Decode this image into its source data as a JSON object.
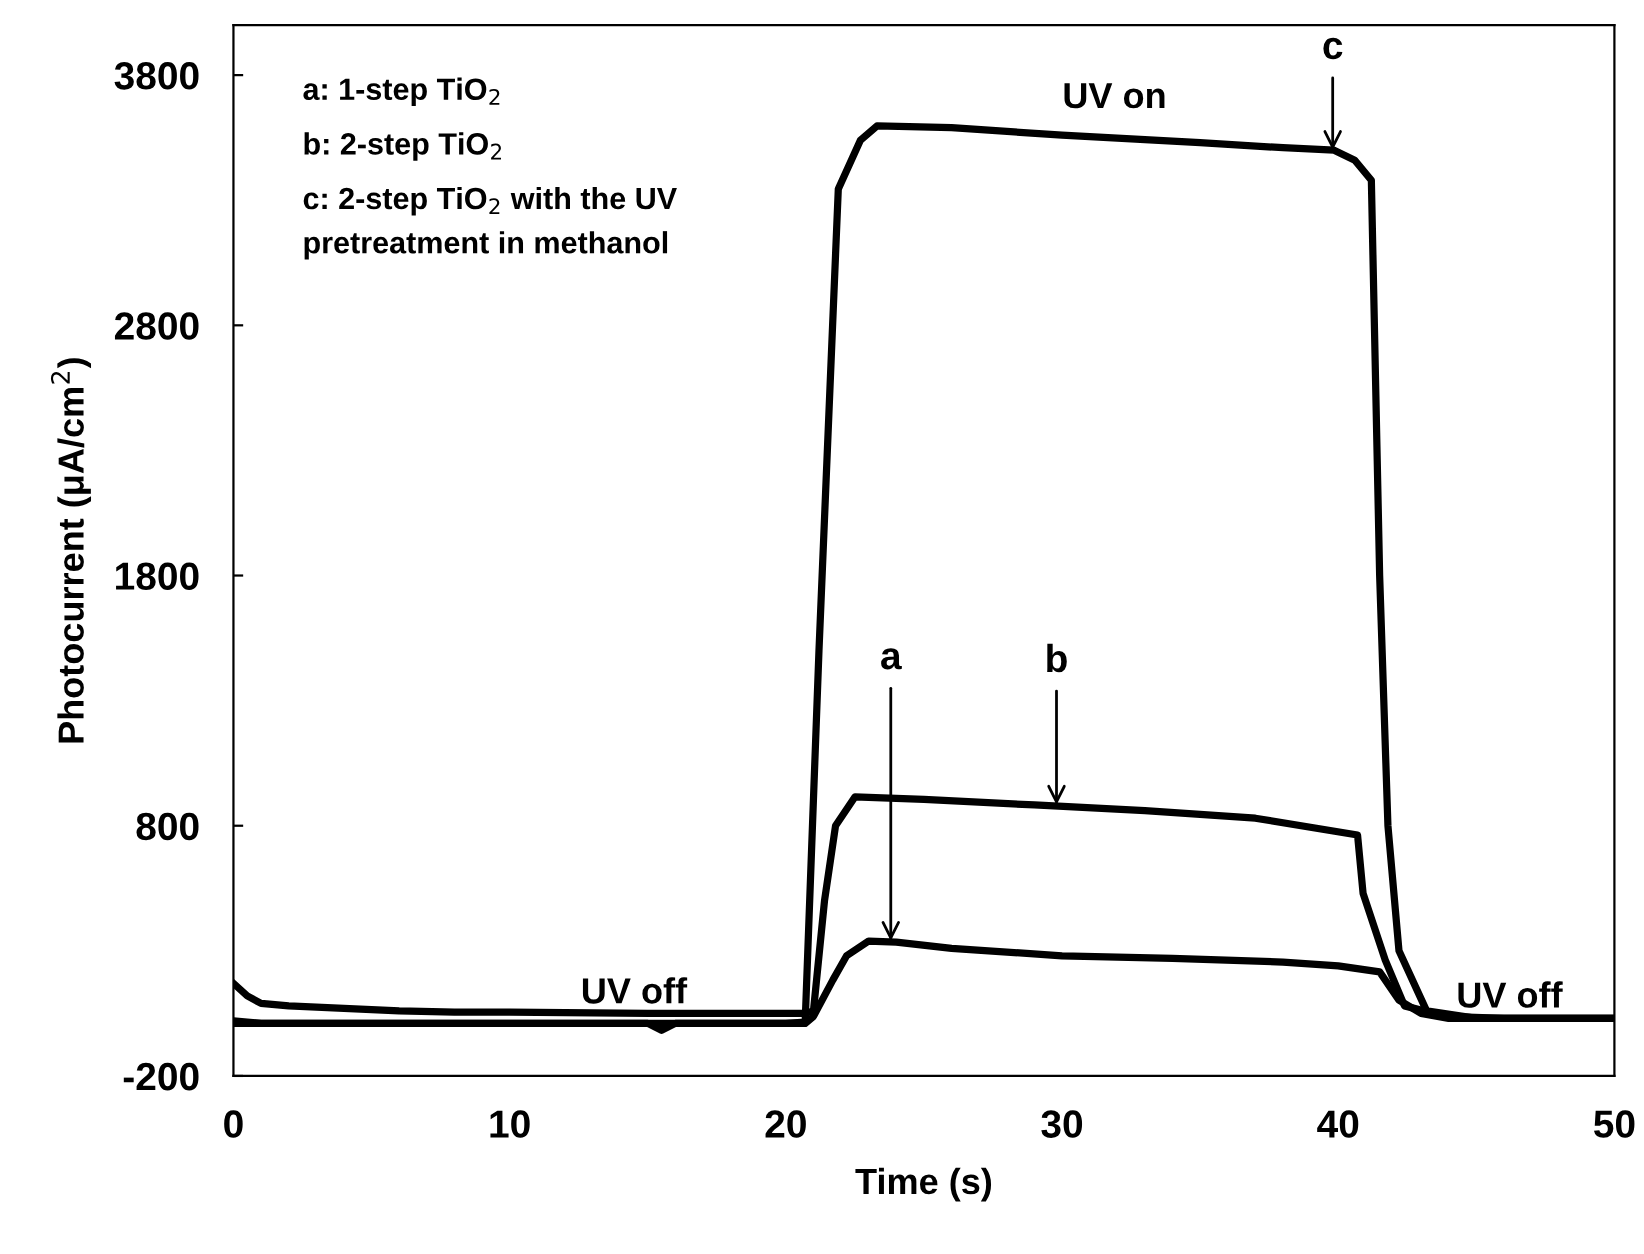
{
  "chart_data": {
    "type": "line",
    "xlabel": "Time (s)",
    "ylabel": "Photocurrent (μA/cm$^{2}$)",
    "xlim": [
      0,
      50
    ],
    "xticks": [
      0,
      10,
      20,
      30,
      40,
      50
    ],
    "ylim": [
      -200,
      4000
    ],
    "yticks": [
      -200,
      800,
      1800,
      2800,
      3800
    ],
    "grid": false,
    "legend": false,
    "marker": "none",
    "line_style": "solid",
    "series": [
      {
        "color": "#000000",
        "x": [
          0,
          0.5,
          1,
          2,
          4,
          6,
          10,
          15,
          15.5,
          16,
          20.7,
          21.0,
          21.7,
          22.2,
          23.0,
          24,
          26,
          30,
          34,
          38,
          40,
          41.5,
          42.2,
          43,
          44,
          46,
          50
        ],
        "values": [
          20,
          15,
          10,
          10,
          10,
          10,
          10,
          10,
          -18,
          10,
          10,
          38,
          183,
          280,
          339,
          335,
          310,
          280,
          270,
          255,
          240,
          216,
          103,
          50,
          30,
          30,
          30
        ]
      },
      {
        "color": "#000000",
        "x": [
          0,
          0.5,
          1,
          2,
          4,
          6,
          8,
          10,
          15,
          20.7,
          21.0,
          21.4,
          21.8,
          22.5,
          25,
          29,
          33,
          37,
          40.7,
          40.9,
          41.7,
          42.4,
          43.9,
          46,
          50
        ],
        "values": [
          170,
          120,
          90,
          80,
          70,
          60,
          55,
          55,
          50,
          50,
          60,
          500,
          800,
          915,
          905,
          883,
          860,
          830,
          763,
          530,
          264,
          80,
          38,
          30,
          30
        ]
      },
      {
        "color": "#000000",
        "x": [
          0,
          5,
          10,
          15,
          20,
          20.7,
          21.2,
          21.9,
          22.7,
          23.3,
          26,
          30,
          35,
          38,
          39.85,
          40.6,
          41.2,
          41.5,
          41.8,
          42.2,
          43.2,
          45,
          50
        ],
        "values": [
          10,
          10,
          10,
          10,
          10,
          15,
          1500,
          3345,
          3540,
          3597,
          3590,
          3560,
          3530,
          3510,
          3500,
          3460,
          3380,
          1800,
          800,
          300,
          60,
          30,
          30
        ]
      }
    ],
    "annotations": [
      {
        "text": "a",
        "x": 23.8,
        "y": 339
      },
      {
        "text": "b",
        "x": 29.8,
        "y": 883
      },
      {
        "text": "c",
        "x": 39.8,
        "y": 3500
      },
      "UV on",
      "UV off",
      "UV off",
      "a: 1-step TiO$_{2}$",
      "b: 2-step TiO$_{2}$",
      "c: 2-step TiO$_{2}$ with the UV\npretreatment in methanol"
    ]
  }
}
